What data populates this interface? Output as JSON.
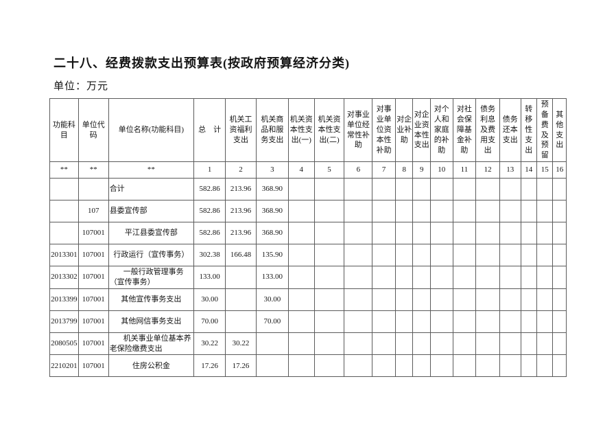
{
  "page": {
    "title": "二十八、经费拨款支出预算表(按政府预算经济分类)",
    "unit_note": "单位：万元"
  },
  "table": {
    "columns": [
      {
        "id": "func-subject",
        "label": "功能科目",
        "code": "**"
      },
      {
        "id": "unit-code",
        "label": "单位代码",
        "code": "**"
      },
      {
        "id": "unit-name",
        "label": "单位名称(功能科目)",
        "code": "**"
      },
      {
        "id": "total",
        "label": "总　计",
        "code": "1"
      },
      {
        "id": "organ-wage-welfare",
        "label": "机关工资福利支出",
        "code": "2"
      },
      {
        "id": "organ-goods-services",
        "label": "机关商品和服务支出",
        "code": "3"
      },
      {
        "id": "organ-capital-1",
        "label": "机关资本性支出(一)",
        "code": "4"
      },
      {
        "id": "organ-capital-2",
        "label": "机关资本性支出(二)",
        "code": "5"
      },
      {
        "id": "inst-regular-subsidy",
        "label": "对事业单位经常性补助",
        "code": "6"
      },
      {
        "id": "inst-capital-subsidy",
        "label": "对事业单位资本性补助",
        "code": "7"
      },
      {
        "id": "enterprise-subsidy",
        "label": "对企业补助",
        "code": "8"
      },
      {
        "id": "enterprise-capital",
        "label": "对企业资本性支出",
        "code": "9"
      },
      {
        "id": "individual-family",
        "label": "对个人和家庭的补助",
        "code": "10"
      },
      {
        "id": "social-security-fund",
        "label": "对社会保障基金补助",
        "code": "11"
      },
      {
        "id": "debt-interest-fee",
        "label": "债务利息及费用支出",
        "code": "12"
      },
      {
        "id": "debt-principal",
        "label": "债务还本支出",
        "code": "13"
      },
      {
        "id": "transfer-expense",
        "label": "转移性支出",
        "code": "14"
      },
      {
        "id": "reserve-fund",
        "label": "预备费及预留",
        "code": "15"
      },
      {
        "id": "other-expense",
        "label": "其他支出",
        "code": "16"
      }
    ],
    "rows": [
      {
        "func_code": "",
        "unit_code": "",
        "name": "合计",
        "align": "left",
        "values": [
          "582.86",
          "213.96",
          "368.90",
          "",
          "",
          "",
          "",
          "",
          "",
          "",
          "",
          "",
          "",
          "",
          "",
          ""
        ]
      },
      {
        "func_code": "",
        "unit_code": "107",
        "name": "县委宣传部",
        "align": "left",
        "values": [
          "582.86",
          "213.96",
          "368.90",
          "",
          "",
          "",
          "",
          "",
          "",
          "",
          "",
          "",
          "",
          "",
          "",
          ""
        ]
      },
      {
        "func_code": "",
        "unit_code": "107001",
        "name": "平江县委宣传部",
        "align": "center",
        "values": [
          "582.86",
          "213.96",
          "368.90",
          "",
          "",
          "",
          "",
          "",
          "",
          "",
          "",
          "",
          "",
          "",
          "",
          ""
        ]
      },
      {
        "func_code": "2013301",
        "unit_code": "107001",
        "name": "行政运行（宣传事务）",
        "align": "center",
        "values": [
          "302.38",
          "166.48",
          "135.90",
          "",
          "",
          "",
          "",
          "",
          "",
          "",
          "",
          "",
          "",
          "",
          "",
          ""
        ]
      },
      {
        "func_code": "2013302",
        "unit_code": "107001",
        "name": "一般行政管理事务\n（宣传事务）",
        "align": "indent",
        "values": [
          "133.00",
          "",
          "133.00",
          "",
          "",
          "",
          "",
          "",
          "",
          "",
          "",
          "",
          "",
          "",
          "",
          ""
        ]
      },
      {
        "func_code": "2013399",
        "unit_code": "107001",
        "name": "其他宣传事务支出",
        "align": "center",
        "values": [
          "30.00",
          "",
          "30.00",
          "",
          "",
          "",
          "",
          "",
          "",
          "",
          "",
          "",
          "",
          "",
          "",
          ""
        ]
      },
      {
        "func_code": "2013799",
        "unit_code": "107001",
        "name": "其他网信事务支出",
        "align": "center",
        "values": [
          "70.00",
          "",
          "70.00",
          "",
          "",
          "",
          "",
          "",
          "",
          "",
          "",
          "",
          "",
          "",
          "",
          ""
        ]
      },
      {
        "func_code": "2080505",
        "unit_code": "107001",
        "name": "机关事业单位基本养老保险缴费支出",
        "align": "indent",
        "values": [
          "30.22",
          "30.22",
          "",
          "",
          "",
          "",
          "",
          "",
          "",
          "",
          "",
          "",
          "",
          "",
          "",
          ""
        ]
      },
      {
        "func_code": "2210201",
        "unit_code": "107001",
        "name": "住房公积金",
        "align": "center",
        "values": [
          "17.26",
          "17.26",
          "",
          "",
          "",
          "",
          "",
          "",
          "",
          "",
          "",
          "",
          "",
          "",
          "",
          ""
        ]
      }
    ]
  }
}
